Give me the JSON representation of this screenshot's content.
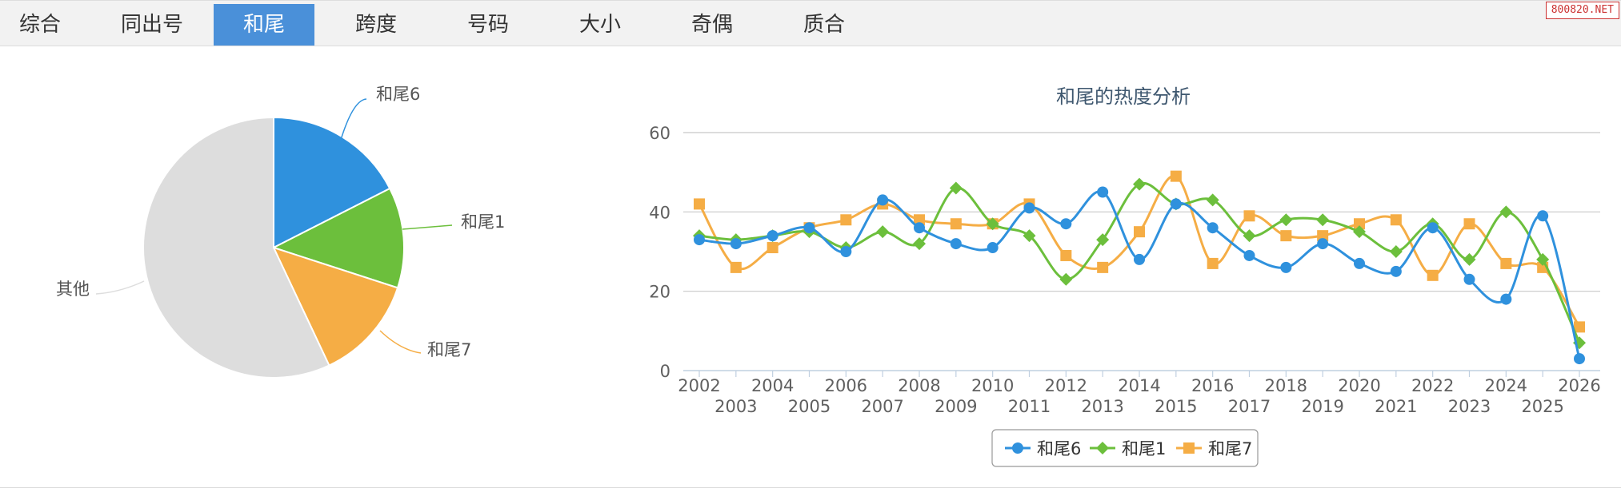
{
  "tabs": [
    {
      "label": "综合",
      "active": false
    },
    {
      "label": "同出号",
      "active": false
    },
    {
      "label": "和尾",
      "active": true
    },
    {
      "label": "跨度",
      "active": false
    },
    {
      "label": "号码",
      "active": false
    },
    {
      "label": "大小",
      "active": false
    },
    {
      "label": "奇偶",
      "active": false
    },
    {
      "label": "质合",
      "active": false
    }
  ],
  "watermark": "800820.NET",
  "colors": {
    "blue": "#2f91dd",
    "green": "#6cbf3c",
    "orange": "#f5ad45",
    "grey": "#dddddd",
    "active_tab": "#4a90d9"
  },
  "chart_data": [
    {
      "type": "pie",
      "slices": [
        {
          "label": "和尾6",
          "value": 17.5,
          "color": "#2f91dd"
        },
        {
          "label": "和尾1",
          "value": 12.5,
          "color": "#6cbf3c"
        },
        {
          "label": "和尾7",
          "value": 13.0,
          "color": "#f5ad45"
        },
        {
          "label": "其他",
          "value": 57.0,
          "color": "#dddddd"
        }
      ]
    },
    {
      "type": "line",
      "title": "和尾的热度分析",
      "x": [
        2002,
        2003,
        2004,
        2005,
        2006,
        2007,
        2008,
        2009,
        2010,
        2011,
        2012,
        2013,
        2014,
        2015,
        2016,
        2017,
        2018,
        2019,
        2020,
        2021,
        2022,
        2023,
        2024,
        2025,
        2026
      ],
      "ylim": [
        0,
        60
      ],
      "yticks": [
        0,
        20,
        40,
        60
      ],
      "grid": true,
      "legend": "bottom-center",
      "series": [
        {
          "name": "和尾6",
          "color": "#2f91dd",
          "marker": "circle",
          "values": [
            33,
            32,
            34,
            36,
            30,
            43,
            36,
            32,
            31,
            41,
            37,
            45,
            28,
            42,
            36,
            29,
            26,
            32,
            27,
            25,
            36,
            23,
            18,
            39,
            3
          ]
        },
        {
          "name": "和尾1",
          "color": "#6cbf3c",
          "marker": "diamond",
          "values": [
            34,
            33,
            34,
            35,
            31,
            35,
            32,
            46,
            37,
            34,
            23,
            33,
            47,
            42,
            43,
            34,
            38,
            38,
            35,
            30,
            37,
            28,
            40,
            28,
            7
          ]
        },
        {
          "name": "和尾7",
          "color": "#f5ad45",
          "marker": "square",
          "values": [
            42,
            26,
            31,
            36,
            38,
            42,
            38,
            37,
            37,
            42,
            29,
            26,
            35,
            49,
            27,
            39,
            34,
            34,
            37,
            38,
            24,
            37,
            27,
            26,
            11
          ]
        }
      ]
    }
  ]
}
